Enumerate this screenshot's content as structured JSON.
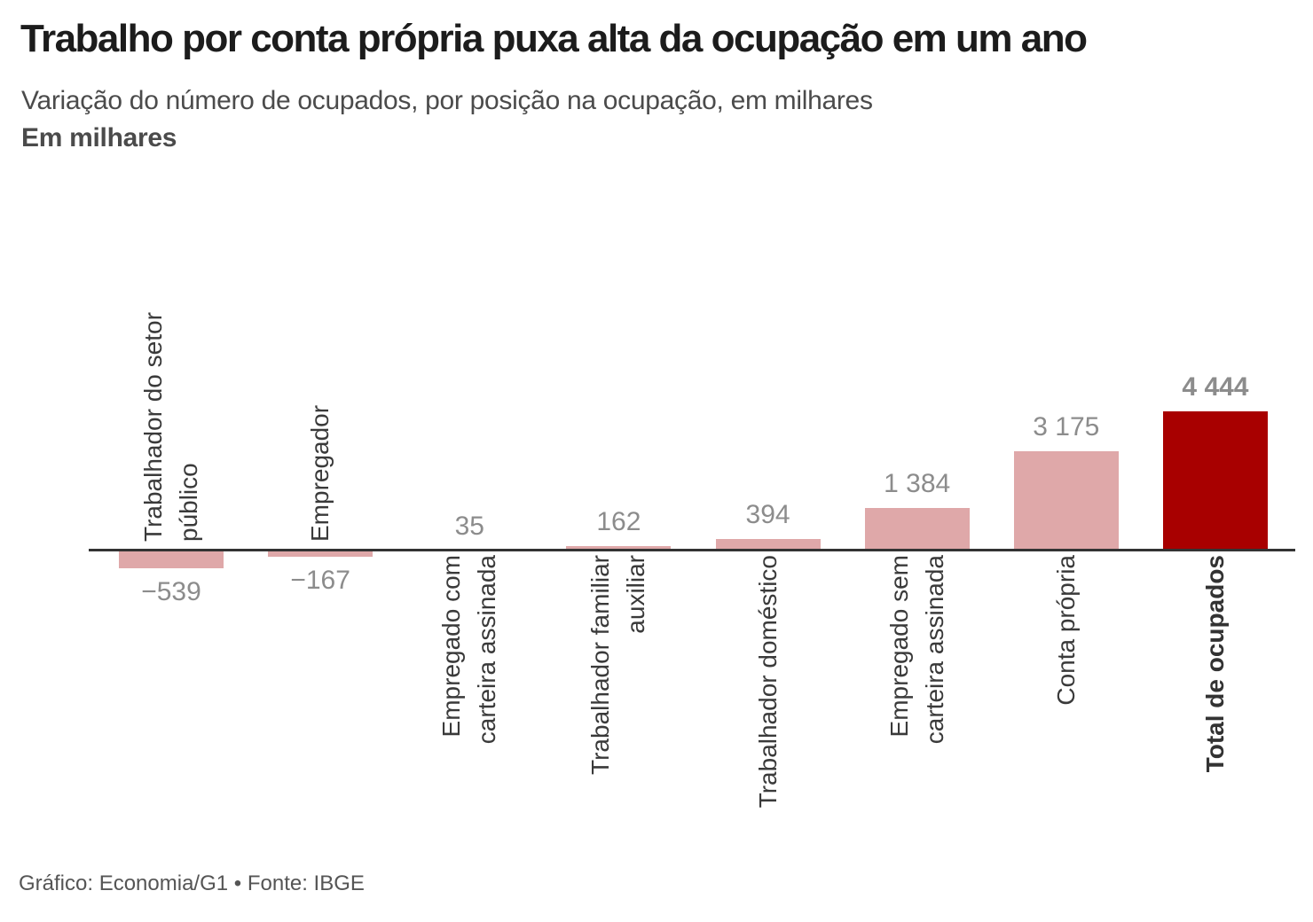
{
  "header": {
    "title": "Trabalho por conta própria puxa alta da ocupação em um ano",
    "subtitle": "Variação do número de ocupados, por posição na ocupação, em milhares",
    "unit_label": "Em milhares"
  },
  "footer": {
    "credit": "Gráfico: Economia/G1 • Fonte: IBGE"
  },
  "chart_data": {
    "type": "bar",
    "title": "Trabalho por conta própria puxa alta da ocupação em um ano",
    "subtitle": "Variação do número de ocupados, por posição na ocupação, em milhares",
    "unit": "Em milhares",
    "baseline": 0,
    "grid": "off",
    "legend": "none",
    "value_labels_shown": true,
    "categories": [
      "Trabalhador do setor público",
      "Empregador",
      "Empregado com carteira assinada",
      "Trabalhador familiar auxiliar",
      "Trabalhador doméstico",
      "Empregado sem carteira assinada",
      "Conta própria",
      "Total de ocupados"
    ],
    "values": [
      -539,
      -167,
      35,
      162,
      394,
      1384,
      3175,
      4444
    ],
    "ylim": [
      -539,
      4444
    ],
    "bars": [
      {
        "label_lines": [
          "Trabalhador do setor",
          "público"
        ],
        "value": -539,
        "value_label": "−539",
        "emphasis": false
      },
      {
        "label_lines": [
          "Empregador"
        ],
        "value": -167,
        "value_label": "−167",
        "emphasis": false
      },
      {
        "label_lines": [
          "Empregado com",
          "carteira assinada"
        ],
        "value": 35,
        "value_label": "35",
        "emphasis": false
      },
      {
        "label_lines": [
          "Trabalhador familiar",
          "auxiliar"
        ],
        "value": 162,
        "value_label": "162",
        "emphasis": false
      },
      {
        "label_lines": [
          "Trabalhador doméstico"
        ],
        "value": 394,
        "value_label": "394",
        "emphasis": false
      },
      {
        "label_lines": [
          "Empregado sem",
          "carteira assinada"
        ],
        "value": 1384,
        "value_label": "1 384",
        "emphasis": false
      },
      {
        "label_lines": [
          "Conta própria"
        ],
        "value": 3175,
        "value_label": "3 175",
        "emphasis": false
      },
      {
        "label_lines": [
          "Total de ocupados"
        ],
        "value": 4444,
        "value_label": "4 444",
        "emphasis": true
      }
    ],
    "colors": {
      "bar": "#dfa8a9",
      "bar_total": "#a80000",
      "axis_line": "#333333",
      "value_label": "#8c8c8c",
      "category_label": "#3a3a3a"
    }
  }
}
